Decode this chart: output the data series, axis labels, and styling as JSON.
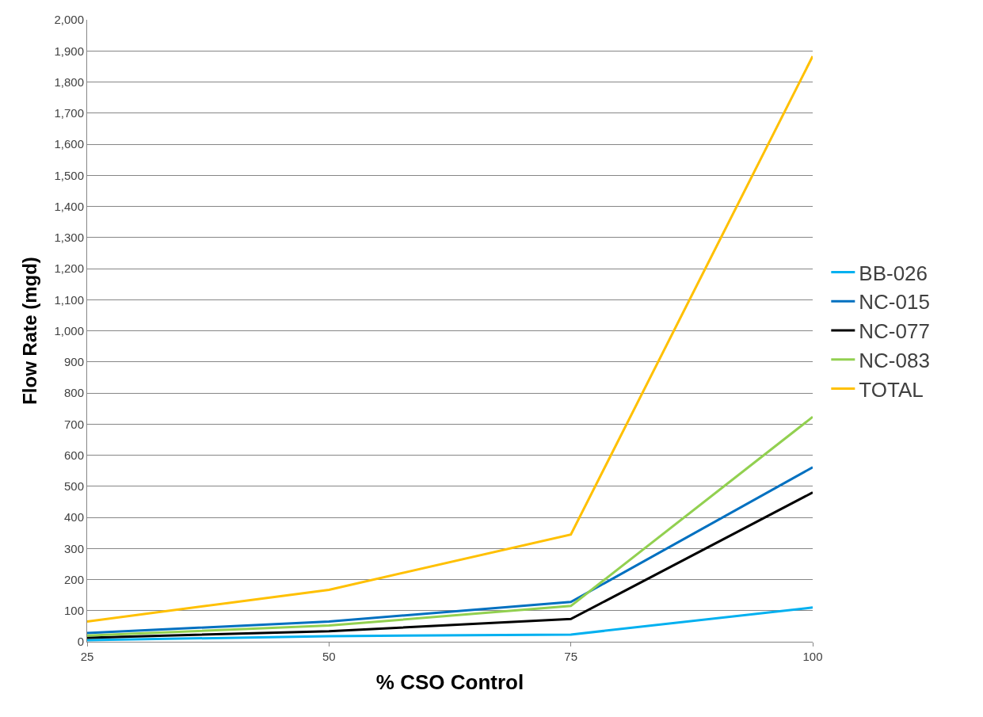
{
  "chart_data": {
    "type": "line",
    "xlabel": "% CSO Control",
    "ylabel": "Flow Rate (mgd)",
    "x": [
      25,
      50,
      75,
      100
    ],
    "series": [
      {
        "name": "BB-026",
        "color": "#00b0f0",
        "values": [
          5,
          18,
          23,
          110
        ]
      },
      {
        "name": "NC-015",
        "color": "#0070c0",
        "values": [
          28,
          65,
          128,
          561
        ]
      },
      {
        "name": "NC-077",
        "color": "#000000",
        "values": [
          13,
          34,
          73,
          480
        ]
      },
      {
        "name": "NC-083",
        "color": "#92d050",
        "values": [
          20,
          52,
          115,
          723
        ]
      },
      {
        "name": "TOTAL",
        "color": "#ffc000",
        "values": [
          65,
          167,
          345,
          1883
        ]
      }
    ],
    "xlim": [
      25,
      100
    ],
    "xticks": [
      25,
      50,
      75,
      100
    ],
    "ylim": [
      0,
      2000
    ],
    "yticks": [
      {
        "value": 0,
        "label": "0"
      },
      {
        "value": 100,
        "label": "100"
      },
      {
        "value": 200,
        "label": "200"
      },
      {
        "value": 300,
        "label": "300"
      },
      {
        "value": 400,
        "label": "400"
      },
      {
        "value": 500,
        "label": "500"
      },
      {
        "value": 600,
        "label": "600"
      },
      {
        "value": 700,
        "label": "700"
      },
      {
        "value": 800,
        "label": "800"
      },
      {
        "value": 900,
        "label": "900"
      },
      {
        "value": 1000,
        "label": "1,000"
      },
      {
        "value": 1100,
        "label": "1,100"
      },
      {
        "value": 1200,
        "label": "1,200"
      },
      {
        "value": 1300,
        "label": "1,300"
      },
      {
        "value": 1400,
        "label": "1,400"
      },
      {
        "value": 1500,
        "label": "1,500"
      },
      {
        "value": 1600,
        "label": "1,600"
      },
      {
        "value": 1700,
        "label": "1,700"
      },
      {
        "value": 1800,
        "label": "1,800"
      },
      {
        "value": 1900,
        "label": "1,900"
      },
      {
        "value": 2000,
        "label": "2,000"
      }
    ],
    "grid": "y",
    "legend": "right",
    "marker": "none",
    "line_style": "solid"
  }
}
